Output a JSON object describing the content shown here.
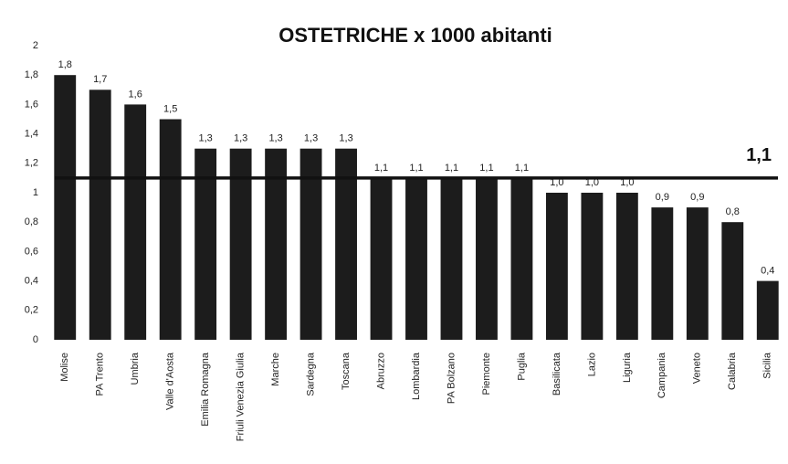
{
  "chart_data": {
    "type": "bar",
    "title": "OSTETRICHE x 1000 abitanti",
    "categories": [
      "Molise",
      "PA Trento",
      "Umbria",
      "Valle d'Aosta",
      "Emilia Romagna",
      "Friuli Venezia Giulia",
      "Marche",
      "Sardegna",
      "Toscana",
      "Abruzzo",
      "Lombardia",
      "PA Bolzano",
      "Piemonte",
      "Puglia",
      "Basilicata",
      "Lazio",
      "Liguria",
      "Campania",
      "Veneto",
      "Calabria",
      "Sicilia"
    ],
    "values": [
      1.8,
      1.7,
      1.6,
      1.5,
      1.3,
      1.3,
      1.3,
      1.3,
      1.3,
      1.1,
      1.1,
      1.1,
      1.1,
      1.1,
      1.0,
      1.0,
      1.0,
      0.9,
      0.9,
      0.8,
      0.4
    ],
    "value_labels": [
      "1,8",
      "1,7",
      "1,6",
      "1,5",
      "1,3",
      "1,3",
      "1,3",
      "1,3",
      "1,3",
      "1,1",
      "1,1",
      "1,1",
      "1,1",
      "1,1",
      "1,0",
      "1,0",
      "1,0",
      "0,9",
      "0,9",
      "0,8",
      "0,4"
    ],
    "color": "#1c1c1c",
    "ylim": [
      0,
      2
    ],
    "yticks": [
      0,
      {
        "value": 0.2,
        "label": "0,2"
      },
      {
        "value": 0.4,
        "label": "0,4"
      },
      {
        "value": 0.6,
        "label": "0,6"
      },
      {
        "value": 0.8,
        "label": "0,8"
      },
      1,
      {
        "value": 1.2,
        "label": "1,2"
      },
      {
        "value": 1.4,
        "label": "1,4"
      },
      {
        "value": 1.6,
        "label": "1,6"
      },
      {
        "value": 1.8,
        "label": "1,8"
      },
      2
    ],
    "reference_line": {
      "value": 1.1,
      "label": "1,1"
    },
    "grid": false
  }
}
